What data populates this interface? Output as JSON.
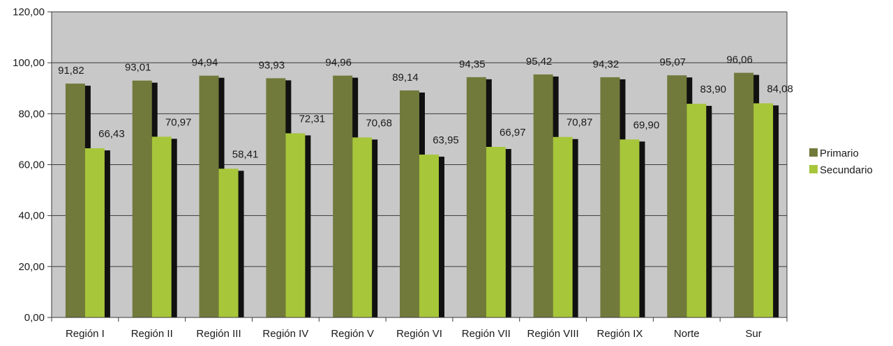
{
  "chart_data": {
    "type": "bar",
    "categories": [
      "Región I",
      "Región II",
      "Región III",
      "Región IV",
      "Región V",
      "Región VI",
      "Región VII",
      "Región VIII",
      "Región IX",
      "Norte",
      "Sur"
    ],
    "series": [
      {
        "name": "Primario",
        "values": [
          91.82,
          93.01,
          94.94,
          93.93,
          94.96,
          89.14,
          94.35,
          95.42,
          94.32,
          95.07,
          96.06
        ],
        "labels": [
          "91,82",
          "93,01",
          "94,94",
          "93,93",
          "94,96",
          "89,14",
          "94,35",
          "95,42",
          "94,32",
          "95,07",
          "96,06"
        ],
        "color": "#717a3b"
      },
      {
        "name": "Secundario",
        "values": [
          66.43,
          70.97,
          58.41,
          72.31,
          70.68,
          63.95,
          66.97,
          70.87,
          69.9,
          83.9,
          84.08
        ],
        "labels": [
          "66,43",
          "70,97",
          "58,41",
          "72,31",
          "70,68",
          "63,95",
          "66,97",
          "70,87",
          "69,90",
          "83,90",
          "84,08"
        ],
        "color": "#a8c63a"
      }
    ],
    "ylim": [
      0,
      120
    ],
    "yticks": [
      0,
      20,
      40,
      60,
      80,
      100,
      120
    ],
    "ytick_labels": [
      "0,00",
      "20,00",
      "40,00",
      "60,00",
      "80,00",
      "100,00",
      "120,00"
    ],
    "grid": true,
    "legend": "right",
    "plot_background": "#c8c8c8",
    "shadow_color": "#111111",
    "title": "",
    "xlabel": "",
    "ylabel": ""
  }
}
